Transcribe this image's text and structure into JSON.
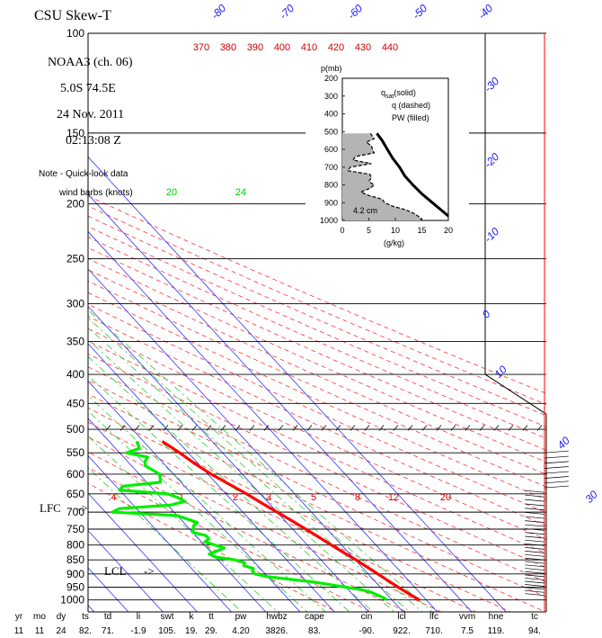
{
  "header": {
    "title": "CSU Skew-T",
    "satellite": "NOAA3 (ch. 06)",
    "location": "5.0S   74.5E",
    "date": "24 Nov. 2011",
    "time": "02:13:08 Z",
    "note_line1": "Note - Quick-look data",
    "note_line2": "wind barbs (knots)"
  },
  "levels": {
    "lfc_label": "LFC",
    "lfc_arrow": "->",
    "lcl_label": "LCL",
    "lcl_arrow": "->"
  },
  "colors": {
    "temperature": "#ff0000",
    "dewpoint": "#00ee00",
    "isotherm": "#3333ff",
    "dry_adiabat": "#ff3333",
    "mixing_ratio": "#33cc33",
    "isobar": "#000000",
    "pw_fill": "#b4b4b4"
  },
  "inset": {
    "p_label": "p(mb)",
    "legend1": "q",
    "legend1_sub": "sat",
    "legend1_tail": "(solid)",
    "legend2": "q (dashed)",
    "legend3": "PW (filled)",
    "pw_value": "4.2 cm",
    "xlabel": "(g/kg)",
    "p_ticks": [
      "200",
      "300",
      "400",
      "500",
      "600",
      "700",
      "800",
      "900",
      "1000"
    ],
    "q_ticks": [
      "0",
      "5",
      "10",
      "15",
      "20"
    ]
  },
  "indices": {
    "headers": [
      "yr",
      "mo",
      "dy",
      "ts",
      "td",
      "li",
      "swt",
      "k",
      "tt",
      "pw",
      "hwbz",
      "cape",
      "cin",
      "lcl",
      "lfc",
      "vvm",
      "hne",
      "tc"
    ],
    "values": [
      "11",
      "11",
      "24",
      "82.",
      "71.",
      "-1.9",
      "105.",
      "19.",
      "29.",
      "4.20",
      "3826.",
      "83.",
      "-90.",
      "922.",
      "710.",
      "7.5",
      "119.",
      "94."
    ]
  },
  "chart_data": {
    "type": "line",
    "title": "CSU Skew-T",
    "ylabel": "",
    "xlabel": "",
    "pressure_ticks": [
      100,
      150,
      200,
      250,
      300,
      350,
      400,
      450,
      500,
      550,
      600,
      650,
      700,
      750,
      800,
      850,
      900,
      950,
      1000
    ],
    "pressure_tick_labels": [
      "100",
      "150",
      "200",
      "250",
      "300",
      "350",
      "400",
      "450",
      "500",
      "550",
      "600",
      "650",
      "700",
      "750",
      "800",
      "850",
      "900",
      "950",
      "1000"
    ],
    "isotherms_c": [
      -80,
      -70,
      -60,
      -50,
      -40,
      -30,
      -20,
      -10,
      0,
      10,
      20,
      30,
      40
    ],
    "isotherm_labels": [
      "-80",
      "-70",
      "-60",
      "-50",
      "-40",
      "-30",
      "-20",
      "-10",
      "0",
      "10",
      "30",
      "40"
    ],
    "theta_labels_k": [
      "370",
      "380",
      "390",
      "400",
      "410",
      "420",
      "430",
      "440"
    ],
    "mixing_ratio_labels_gkg": [
      "20",
      "24",
      "2"
    ],
    "mixing_ratio_lower_labels": [
      ".4",
      "1",
      "2",
      "3",
      "5",
      "8",
      "12",
      "20"
    ],
    "series": [
      {
        "name": "temperature",
        "p": [
          525,
          550,
          575,
          600,
          625,
          650,
          675,
          700,
          725,
          750,
          775,
          800,
          825,
          850,
          875,
          900,
          925,
          950,
          975,
          1000
        ],
        "t": [
          -4.5,
          -2.5,
          -1.0,
          1.0,
          3.5,
          6.0,
          8.0,
          10.0,
          12.0,
          13.8,
          15.5,
          17.0,
          18.6,
          20.2,
          21.5,
          22.8,
          24.0,
          25.2,
          26.5,
          28.0
        ]
      },
      {
        "name": "dewpoint",
        "p": [
          525,
          540,
          550,
          560,
          570,
          580,
          590,
          600,
          610,
          620,
          630,
          640,
          650,
          660,
          670,
          680,
          690,
          700,
          710,
          720,
          730,
          740,
          750,
          760,
          770,
          780,
          790,
          800,
          810,
          820,
          830,
          840,
          850,
          860,
          870,
          880,
          890,
          900,
          910,
          920,
          930,
          940,
          950,
          960,
          970,
          980,
          990,
          1000
        ],
        "t": [
          -12,
          -13,
          -18,
          -13,
          -15,
          -16,
          -15,
          -14,
          -15,
          -16,
          -28,
          -30,
          -17,
          -15,
          -14,
          -19,
          -35,
          -38,
          -20,
          -18,
          -16,
          -18,
          -19,
          -20,
          -17,
          -17,
          -19,
          -17,
          -15,
          -18,
          -21,
          -20,
          -15,
          -13,
          -14,
          -12,
          -13,
          -13,
          -10,
          -4,
          2,
          6,
          10,
          14,
          16,
          17,
          18,
          18.5
        ]
      }
    ],
    "inset_chart": {
      "type": "line",
      "xlim": [
        0,
        20
      ],
      "ylim": [
        200,
        1000
      ],
      "series": [
        {
          "name": "qsat",
          "p": [
            510,
            550,
            600,
            650,
            700,
            750,
            800,
            850,
            900,
            950,
            1000
          ],
          "q": [
            6.5,
            7.5,
            8.5,
            9.5,
            10.8,
            11.8,
            13.3,
            15.0,
            17.0,
            19.0,
            21.0
          ]
        },
        {
          "name": "q",
          "p": [
            510,
            540,
            560,
            580,
            600,
            620,
            640,
            660,
            680,
            700,
            720,
            740,
            760,
            780,
            800,
            820,
            840,
            860,
            880,
            900,
            920,
            940,
            960,
            980,
            1000
          ],
          "q": [
            5.3,
            6.0,
            4.5,
            5.5,
            5.7,
            6.0,
            2.5,
            2.0,
            5.5,
            1.5,
            1.0,
            5.2,
            5.5,
            5.0,
            6.0,
            5.2,
            3.5,
            5.0,
            7.5,
            8.0,
            9.5,
            12.0,
            13.5,
            14.5,
            15.0
          ]
        }
      ]
    }
  }
}
